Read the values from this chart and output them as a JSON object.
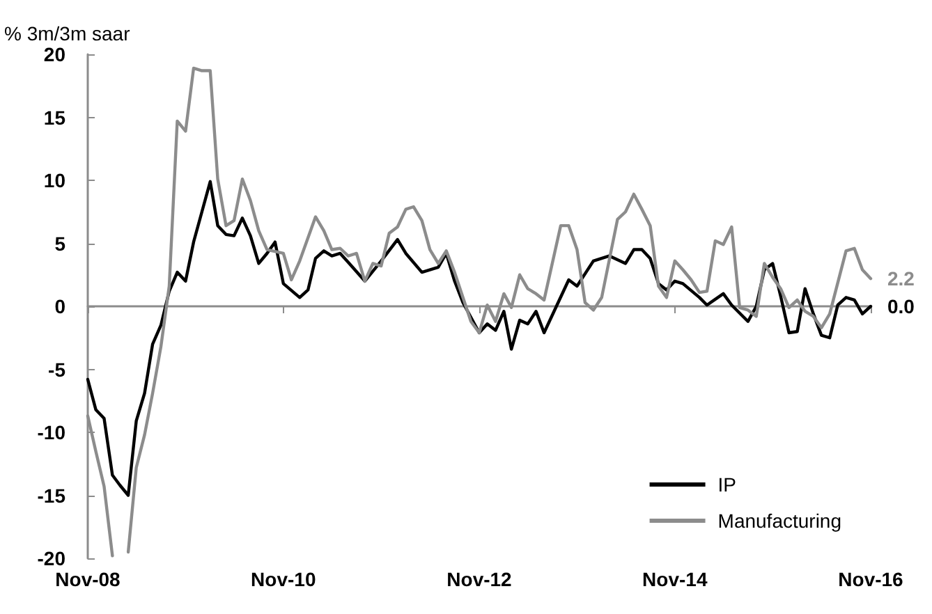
{
  "chart_data": {
    "type": "line",
    "ylabel": "% 3m/3m saar",
    "xlim": [
      "2008-11",
      "2016-11"
    ],
    "xticks": [
      {
        "value": "2008-11",
        "label": "Nov-08"
      },
      {
        "value": "2010-11",
        "label": "Nov-10"
      },
      {
        "value": "2012-11",
        "label": "Nov-12"
      },
      {
        "value": "2014-11",
        "label": "Nov-14"
      },
      {
        "value": "2016-11",
        "label": "Nov-16"
      }
    ],
    "ylim": [
      -20,
      20
    ],
    "yticks": [
      -20,
      -15,
      -10,
      -5,
      0,
      5,
      10,
      15,
      20
    ],
    "legend": "bottom right",
    "marker": "none",
    "line_style": "solid",
    "series": [
      {
        "name": "IP",
        "color": "#000000",
        "x": [
          "2008-11",
          "2008-12",
          "2009-01",
          "2009-02",
          "2009-03",
          "2009-04",
          "2009-05",
          "2009-06",
          "2009-07",
          "2009-08",
          "2009-09",
          "2009-10",
          "2009-11",
          "2009-12",
          "2010-01",
          "2010-02",
          "2010-03",
          "2010-04",
          "2010-05",
          "2010-06",
          "2010-07",
          "2010-08",
          "2010-09",
          "2010-10",
          "2010-11",
          "2011-01",
          "2011-02",
          "2011-03",
          "2011-04",
          "2011-05",
          "2011-06",
          "2011-07",
          "2011-09",
          "2011-11",
          "2012-01",
          "2012-02",
          "2012-04",
          "2012-06",
          "2012-07",
          "2012-08",
          "2012-09",
          "2012-11",
          "2012-12",
          "2013-01",
          "2013-02",
          "2013-03",
          "2013-04",
          "2013-05",
          "2013-06",
          "2013-07",
          "2013-10",
          "2013-11",
          "2014-01",
          "2014-03",
          "2014-05",
          "2014-06",
          "2014-07",
          "2014-08",
          "2014-09",
          "2014-10",
          "2014-11",
          "2014-12",
          "2015-02",
          "2015-03",
          "2015-05",
          "2015-06",
          "2015-08",
          "2015-09",
          "2015-10",
          "2015-11",
          "2015-12",
          "2016-01",
          "2016-02",
          "2016-03",
          "2016-04",
          "2016-05",
          "2016-06",
          "2016-07",
          "2016-08",
          "2016-09",
          "2016-10",
          "2016-11"
        ],
        "values": [
          -5.8,
          -8.2,
          -8.9,
          -13.4,
          -14.2,
          -15,
          -9.1,
          -6.9,
          -3,
          -1.5,
          1.2,
          2.7,
          2,
          5.1,
          7.5,
          9.9,
          6.4,
          5.7,
          5.6,
          7,
          5.6,
          3.4,
          4.2,
          5.1,
          1.8,
          0.7,
          1.3,
          3.8,
          4.4,
          4,
          4.2,
          3.5,
          2,
          3.6,
          5.3,
          4.2,
          2.7,
          3.1,
          4.2,
          2,
          0.3,
          -2.1,
          -1.4,
          -1.9,
          -0.4,
          -3.4,
          -1.1,
          -1.4,
          -0.4,
          -2.1,
          2.1,
          1.6,
          3.6,
          4,
          3.4,
          4.5,
          4.5,
          3.8,
          1.8,
          1.3,
          2,
          1.8,
          0.7,
          0.1,
          1,
          0.1,
          -1.2,
          0,
          2.9,
          3.4,
          0.8,
          -2.1,
          -2,
          1.4,
          -0.6,
          -2.3,
          -2.5,
          0.1,
          0.7,
          0.5,
          -0.6,
          0.0
        ],
        "value_labels": [
          null,
          null,
          null,
          null,
          null,
          null,
          null,
          null,
          null,
          null,
          null,
          null,
          null,
          null,
          null,
          null,
          null,
          null,
          null,
          null,
          null,
          null,
          null,
          null,
          null,
          null,
          null,
          null,
          null,
          null,
          null,
          null,
          null,
          null,
          null,
          null,
          null,
          null,
          null,
          null,
          null,
          null,
          null,
          null,
          null,
          null,
          null,
          null,
          null,
          null,
          null,
          null,
          null,
          null,
          null,
          null,
          null,
          null,
          null,
          null,
          null,
          null,
          null,
          null,
          null,
          null,
          null,
          null,
          null,
          null,
          null,
          null,
          null,
          null,
          null,
          null,
          null,
          null,
          null,
          null,
          null,
          "0.0"
        ]
      },
      {
        "name": "Manufacturing",
        "color": "#8c8c8c",
        "x": [
          "2008-11",
          "2008-12",
          "2009-01",
          "2009-02",
          "2009-03",
          "2009-04",
          "2009-05",
          "2009-06",
          "2009-07",
          "2009-08",
          "2009-09",
          "2009-10",
          "2009-11",
          "2009-12",
          "2010-01",
          "2010-02",
          "2010-03",
          "2010-04",
          "2010-05",
          "2010-06",
          "2010-07",
          "2010-08",
          "2010-09",
          "2010-11",
          "2010-12",
          "2011-01",
          "2011-03",
          "2011-04",
          "2011-05",
          "2011-06",
          "2011-07",
          "2011-08",
          "2011-09",
          "2011-10",
          "2011-11",
          "2011-12",
          "2012-01",
          "2012-02",
          "2012-03",
          "2012-04",
          "2012-05",
          "2012-06",
          "2012-07",
          "2012-08",
          "2012-10",
          "2012-11",
          "2012-12",
          "2013-01",
          "2013-02",
          "2013-03",
          "2013-04",
          "2013-05",
          "2013-06",
          "2013-07",
          "2013-09",
          "2013-10",
          "2013-11",
          "2013-12",
          "2014-01",
          "2014-02",
          "2014-04",
          "2014-05",
          "2014-06",
          "2014-07",
          "2014-08",
          "2014-09",
          "2014-10",
          "2014-11",
          "2014-12",
          "2015-01",
          "2015-02",
          "2015-03",
          "2015-04",
          "2015-05",
          "2015-06",
          "2015-07",
          "2015-08",
          "2015-09",
          "2015-10",
          "2015-11",
          "2015-12",
          "2016-01",
          "2016-02",
          "2016-03",
          "2016-04",
          "2016-05",
          "2016-06",
          "2016-08",
          "2016-09",
          "2016-10",
          "2016-11"
        ],
        "values": [
          -8.7,
          -11.5,
          -14.3,
          -19.8,
          null,
          -19.5,
          -12.8,
          -10.2,
          -6.9,
          -3.2,
          1.6,
          14.7,
          13.9,
          18.9,
          18.7,
          18.7,
          10.1,
          6.4,
          6.8,
          10.1,
          8.4,
          6,
          4.5,
          4.2,
          2.1,
          3.6,
          7.1,
          6,
          4.5,
          4.6,
          4,
          4.2,
          2,
          3.4,
          3.2,
          5.8,
          6.3,
          7.7,
          7.9,
          6.8,
          4.5,
          3.4,
          4.4,
          2.7,
          -1.2,
          -2.1,
          0.1,
          -1.2,
          1,
          -0.1,
          2.5,
          1.4,
          1,
          0.5,
          6.4,
          6.4,
          4.5,
          0.3,
          -0.3,
          0.7,
          6.9,
          7.5,
          8.9,
          7.7,
          6.4,
          1.6,
          0.7,
          3.6,
          2.9,
          2.1,
          1.1,
          1.2,
          5.2,
          4.9,
          6.3,
          -0.1,
          -0.3,
          -0.8,
          3.4,
          2.3,
          1.4,
          -0.1,
          0.5,
          -0.4,
          -0.8,
          -1.7,
          -0.6,
          4.4,
          4.6,
          2.9,
          2.2
        ],
        "value_labels": [
          null,
          null,
          null,
          null,
          null,
          null,
          null,
          null,
          null,
          null,
          null,
          null,
          null,
          null,
          null,
          null,
          null,
          null,
          null,
          null,
          null,
          null,
          null,
          null,
          null,
          null,
          null,
          null,
          null,
          null,
          null,
          null,
          null,
          null,
          null,
          null,
          null,
          null,
          null,
          null,
          null,
          null,
          null,
          null,
          null,
          null,
          null,
          null,
          null,
          null,
          null,
          null,
          null,
          null,
          null,
          null,
          null,
          null,
          null,
          null,
          null,
          null,
          null,
          null,
          null,
          null,
          null,
          null,
          null,
          null,
          null,
          null,
          null,
          null,
          null,
          null,
          null,
          null,
          null,
          null,
          null,
          null,
          null,
          null,
          null,
          null,
          null,
          null,
          null,
          null,
          "2.2"
        ]
      }
    ]
  }
}
